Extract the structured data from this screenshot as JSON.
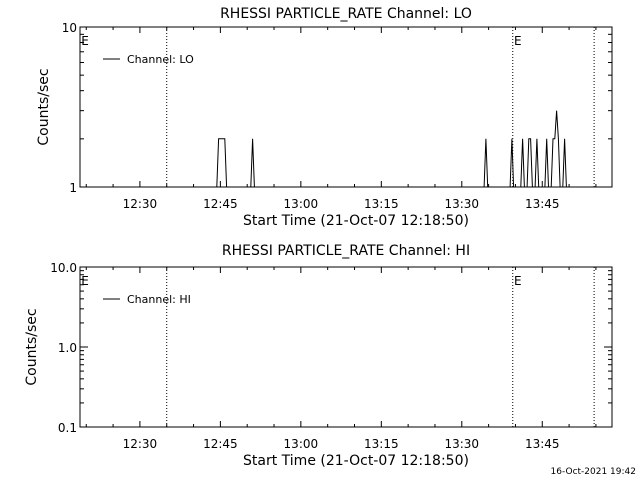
{
  "timestamp": "16-Oct-2021 19:42",
  "chart_data": [
    {
      "type": "line",
      "title": "RHESSI PARTICLE_RATE Channel: LO",
      "xlabel": "Start Time (21-Oct-07 12:18:50)",
      "ylabel": "Counts/sec",
      "yscale": "log",
      "ylim": [
        1,
        10
      ],
      "y_tick_labels": [
        "1",
        "10"
      ],
      "y_ticks": [
        1,
        10
      ],
      "xlim": [
        "12:18:50",
        "13:58:00"
      ],
      "x_tick_labels": [
        "12:30",
        "12:45",
        "13:00",
        "13:15",
        "13:30",
        "13:45"
      ],
      "x_ticks": [
        "12:30",
        "12:45",
        "13:00",
        "13:15",
        "13:30",
        "13:45"
      ],
      "vlines": [
        "12:35:00",
        "13:39:30",
        "13:54:40"
      ],
      "vline_labels": [
        {
          "time": "12:18:50",
          "text": "E"
        },
        {
          "time": "13:39:30",
          "text": "E"
        }
      ],
      "legend": "top-left",
      "grid": false,
      "series": [
        {
          "name": "Channel: LO",
          "color": "#000000",
          "points": [
            [
              "12:44:20",
              1
            ],
            [
              "12:44:40",
              2
            ],
            [
              "12:45:50",
              2
            ],
            [
              "12:46:10",
              1
            ],
            [
              "12:50:40",
              1
            ],
            [
              "12:51:00",
              2
            ],
            [
              "12:51:20",
              1
            ],
            [
              "13:34:10",
              1
            ],
            [
              "13:34:30",
              2
            ],
            [
              "13:34:50",
              1
            ],
            [
              "13:39:00",
              1
            ],
            [
              "13:39:20",
              2
            ],
            [
              "13:39:40",
              1
            ],
            [
              "13:41:00",
              1
            ],
            [
              "13:41:20",
              2
            ],
            [
              "13:41:40",
              1
            ],
            [
              "13:42:10",
              1
            ],
            [
              "13:42:30",
              2
            ],
            [
              "13:42:50",
              2
            ],
            [
              "13:43:10",
              1
            ],
            [
              "13:43:40",
              1
            ],
            [
              "13:44:00",
              2
            ],
            [
              "13:44:20",
              1
            ],
            [
              "13:45:30",
              1
            ],
            [
              "13:45:50",
              2
            ],
            [
              "13:46:10",
              1
            ],
            [
              "13:46:40",
              1
            ],
            [
              "13:47:00",
              2
            ],
            [
              "13:47:20",
              2
            ],
            [
              "13:47:40",
              3
            ],
            [
              "13:48:00",
              2
            ],
            [
              "13:48:20",
              1
            ],
            [
              "13:48:50",
              1
            ],
            [
              "13:49:10",
              2
            ],
            [
              "13:49:30",
              1
            ]
          ]
        }
      ]
    },
    {
      "type": "line",
      "title": "RHESSI PARTICLE_RATE Channel: HI",
      "xlabel": "Start Time (21-Oct-07 12:18:50)",
      "ylabel": "Counts/sec",
      "yscale": "log",
      "ylim": [
        0.1,
        10
      ],
      "y_tick_labels": [
        "0.1",
        "1.0",
        "10.0"
      ],
      "y_ticks": [
        0.1,
        1,
        10
      ],
      "xlim": [
        "12:18:50",
        "13:58:00"
      ],
      "x_tick_labels": [
        "12:30",
        "12:45",
        "13:00",
        "13:15",
        "13:30",
        "13:45"
      ],
      "x_ticks": [
        "12:30",
        "12:45",
        "13:00",
        "13:15",
        "13:30",
        "13:45"
      ],
      "vlines": [
        "12:35:00",
        "13:39:30",
        "13:54:40"
      ],
      "vline_labels": [
        {
          "time": "12:18:50",
          "text": "E"
        },
        {
          "time": "13:39:30",
          "text": "E"
        }
      ],
      "legend": "top-left",
      "grid": false,
      "series": [
        {
          "name": "Channel: HI",
          "color": "#000000",
          "points": []
        }
      ]
    }
  ]
}
